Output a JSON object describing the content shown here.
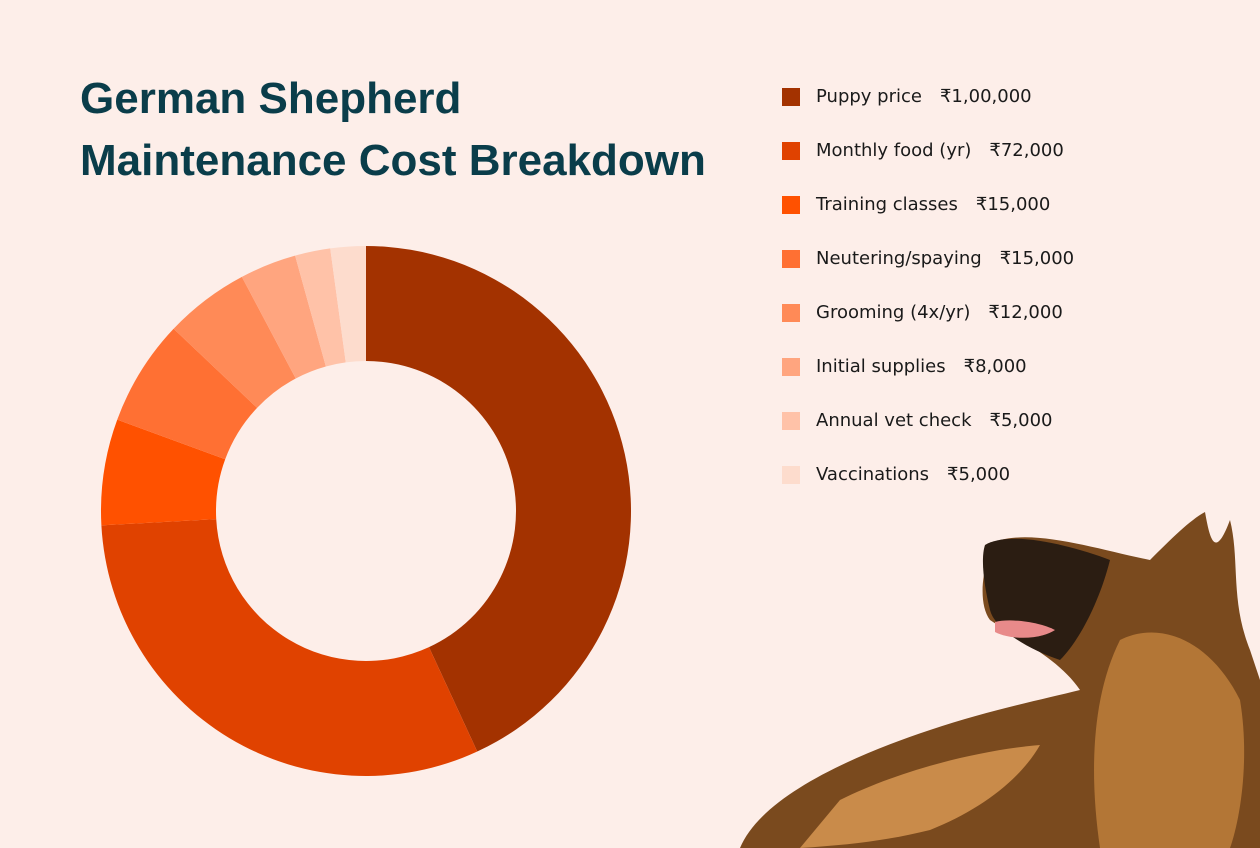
{
  "chart_data": {
    "type": "donut",
    "title": "German Shepherd Maintenance Cost Breakdown",
    "categories": [
      "Puppy price",
      "Monthly food (yr)",
      "Training classes",
      "Neutering/spaying",
      "Grooming (4x/yr)",
      "Initial supplies",
      "Annual vet check",
      "Vaccinations"
    ],
    "values": [
      100000,
      72000,
      15000,
      15000,
      12000,
      8000,
      5000,
      5000
    ],
    "value_labels": [
      "₹1,00,000",
      "₹72,000",
      "₹15,000",
      "₹15,000",
      "₹12,000",
      "₹8,000",
      "₹5,000",
      "₹5,000"
    ],
    "colors": [
      "#a33200",
      "#e04200",
      "#ff5100",
      "#ff7033",
      "#ff8a57",
      "#ffa57f",
      "#ffc2a8",
      "#fddccd"
    ],
    "legend": "right"
  }
}
